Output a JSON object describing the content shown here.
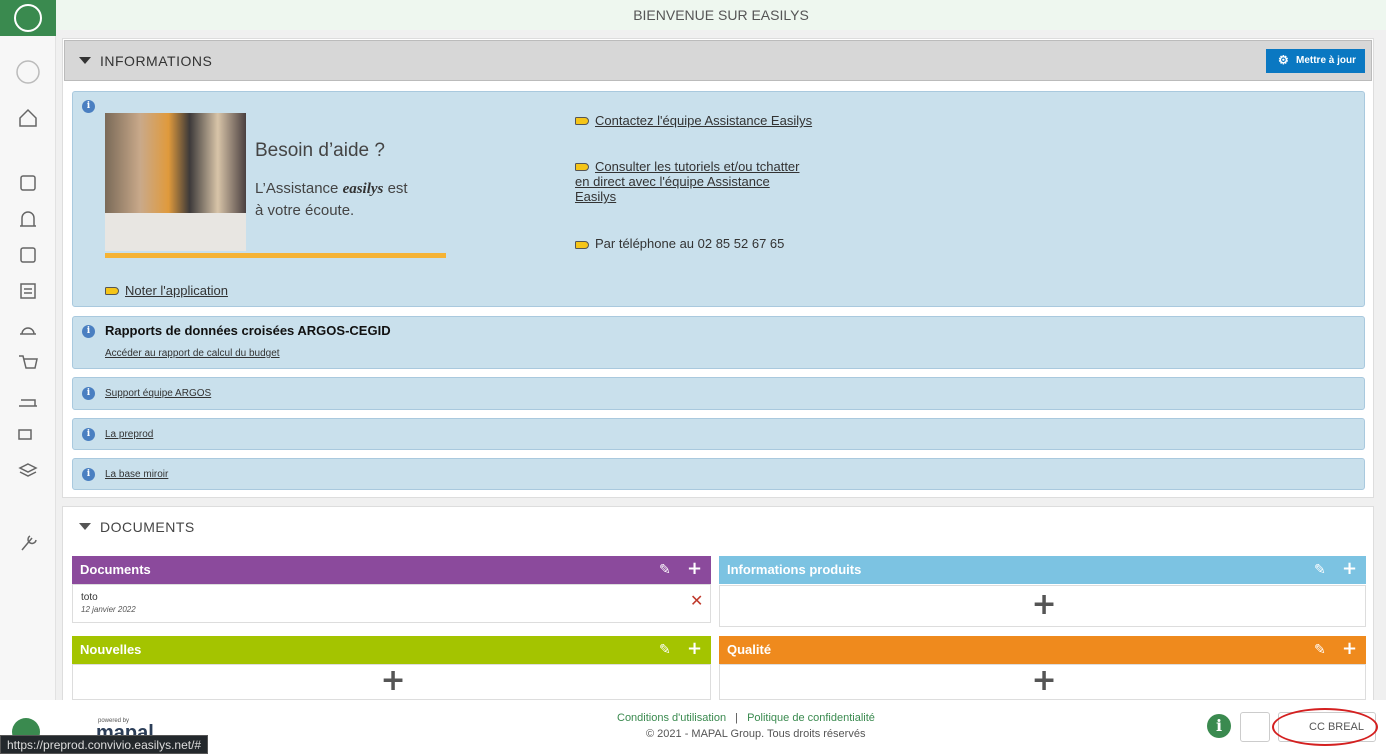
{
  "header": {
    "title": "BIENVENUE SUR EASILYS"
  },
  "informations": {
    "title": "INFORMATIONS",
    "button": "Mettre à jour",
    "banner": {
      "heading": "Besoin d’aide ?",
      "line1": "L’Assistance",
      "brand": "easilys",
      "line1_end": "est",
      "line2": "à votre écoute."
    },
    "links": [
      "Contactez l'équipe Assistance Easilys",
      "Consulter les tutoriels et/ou tchatter en direct avec l'équipe Assistance Easilys",
      "Par téléphone au 02 85 52 67 65",
      "Noter l'application"
    ],
    "reports": {
      "title": "Rapports de données croisées ARGOS-CEGID",
      "link": "Accéder au rapport de calcul du budget"
    },
    "items": [
      "Support équipe ARGOS",
      "La preprod",
      "La base miroir"
    ]
  },
  "documents": {
    "title": "DOCUMENTS",
    "widgets": [
      {
        "title": "Documents",
        "color": "#8b4a9c",
        "entries": [
          {
            "name": "toto",
            "date": "12 janvier 2022"
          }
        ]
      },
      {
        "title": "Informations produits",
        "color": "#7cc3e2",
        "entries": []
      },
      {
        "title": "Nouvelles",
        "color": "#a4c400",
        "entries": []
      },
      {
        "title": "Qualité",
        "color": "#ef8a1d",
        "entries": []
      }
    ]
  },
  "footer": {
    "powered": "powered by",
    "brand": "mapal",
    "terms": "Conditions d'utilisation",
    "separator": "|",
    "privacy": "Politique de confidentialité",
    "copyright": "© 2021 - MAPAL Group. Tous droits réservés",
    "site": "CC BREAL"
  },
  "status_url": "https://preprod.convivio.easilys.net/#"
}
